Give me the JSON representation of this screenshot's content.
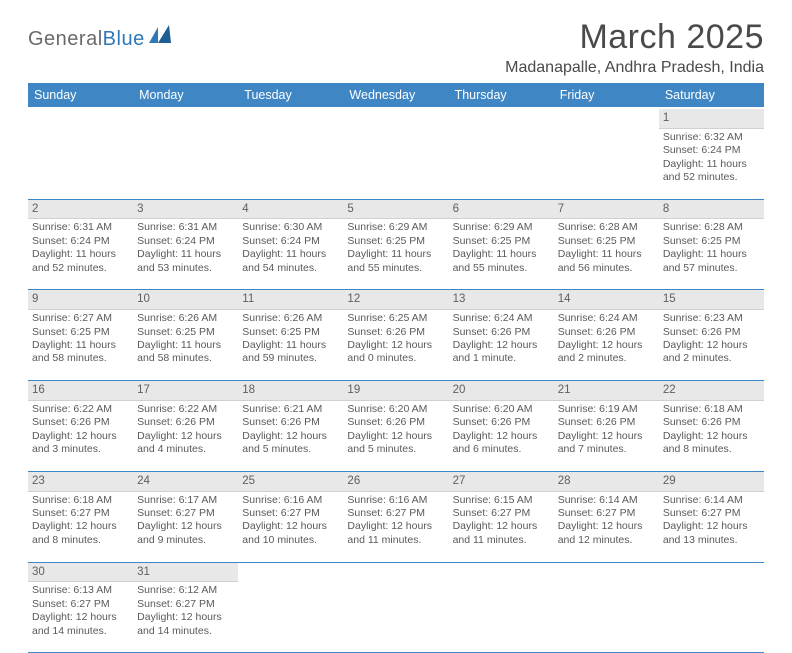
{
  "brand": {
    "name_part1": "General",
    "name_part2": "Blue",
    "mark_color": "#2f78b7"
  },
  "title": "March 2025",
  "subtitle": "Madanapalle, Andhra Pradesh, India",
  "colors": {
    "header_bg": "#3f86c5",
    "header_fg": "#ffffff",
    "row_border": "#3f86c5",
    "daynum_bg": "#e8e8e8",
    "text": "#5a5a5a"
  },
  "weekdays": [
    "Sunday",
    "Monday",
    "Tuesday",
    "Wednesday",
    "Thursday",
    "Friday",
    "Saturday"
  ],
  "leading_blanks": 6,
  "days": [
    {
      "n": 1,
      "sunrise": "6:32 AM",
      "sunset": "6:24 PM",
      "daylight": "11 hours and 52 minutes."
    },
    {
      "n": 2,
      "sunrise": "6:31 AM",
      "sunset": "6:24 PM",
      "daylight": "11 hours and 52 minutes."
    },
    {
      "n": 3,
      "sunrise": "6:31 AM",
      "sunset": "6:24 PM",
      "daylight": "11 hours and 53 minutes."
    },
    {
      "n": 4,
      "sunrise": "6:30 AM",
      "sunset": "6:24 PM",
      "daylight": "11 hours and 54 minutes."
    },
    {
      "n": 5,
      "sunrise": "6:29 AM",
      "sunset": "6:25 PM",
      "daylight": "11 hours and 55 minutes."
    },
    {
      "n": 6,
      "sunrise": "6:29 AM",
      "sunset": "6:25 PM",
      "daylight": "11 hours and 55 minutes."
    },
    {
      "n": 7,
      "sunrise": "6:28 AM",
      "sunset": "6:25 PM",
      "daylight": "11 hours and 56 minutes."
    },
    {
      "n": 8,
      "sunrise": "6:28 AM",
      "sunset": "6:25 PM",
      "daylight": "11 hours and 57 minutes."
    },
    {
      "n": 9,
      "sunrise": "6:27 AM",
      "sunset": "6:25 PM",
      "daylight": "11 hours and 58 minutes."
    },
    {
      "n": 10,
      "sunrise": "6:26 AM",
      "sunset": "6:25 PM",
      "daylight": "11 hours and 58 minutes."
    },
    {
      "n": 11,
      "sunrise": "6:26 AM",
      "sunset": "6:25 PM",
      "daylight": "11 hours and 59 minutes."
    },
    {
      "n": 12,
      "sunrise": "6:25 AM",
      "sunset": "6:26 PM",
      "daylight": "12 hours and 0 minutes."
    },
    {
      "n": 13,
      "sunrise": "6:24 AM",
      "sunset": "6:26 PM",
      "daylight": "12 hours and 1 minute."
    },
    {
      "n": 14,
      "sunrise": "6:24 AM",
      "sunset": "6:26 PM",
      "daylight": "12 hours and 2 minutes."
    },
    {
      "n": 15,
      "sunrise": "6:23 AM",
      "sunset": "6:26 PM",
      "daylight": "12 hours and 2 minutes."
    },
    {
      "n": 16,
      "sunrise": "6:22 AM",
      "sunset": "6:26 PM",
      "daylight": "12 hours and 3 minutes."
    },
    {
      "n": 17,
      "sunrise": "6:22 AM",
      "sunset": "6:26 PM",
      "daylight": "12 hours and 4 minutes."
    },
    {
      "n": 18,
      "sunrise": "6:21 AM",
      "sunset": "6:26 PM",
      "daylight": "12 hours and 5 minutes."
    },
    {
      "n": 19,
      "sunrise": "6:20 AM",
      "sunset": "6:26 PM",
      "daylight": "12 hours and 5 minutes."
    },
    {
      "n": 20,
      "sunrise": "6:20 AM",
      "sunset": "6:26 PM",
      "daylight": "12 hours and 6 minutes."
    },
    {
      "n": 21,
      "sunrise": "6:19 AM",
      "sunset": "6:26 PM",
      "daylight": "12 hours and 7 minutes."
    },
    {
      "n": 22,
      "sunrise": "6:18 AM",
      "sunset": "6:26 PM",
      "daylight": "12 hours and 8 minutes."
    },
    {
      "n": 23,
      "sunrise": "6:18 AM",
      "sunset": "6:27 PM",
      "daylight": "12 hours and 8 minutes."
    },
    {
      "n": 24,
      "sunrise": "6:17 AM",
      "sunset": "6:27 PM",
      "daylight": "12 hours and 9 minutes."
    },
    {
      "n": 25,
      "sunrise": "6:16 AM",
      "sunset": "6:27 PM",
      "daylight": "12 hours and 10 minutes."
    },
    {
      "n": 26,
      "sunrise": "6:16 AM",
      "sunset": "6:27 PM",
      "daylight": "12 hours and 11 minutes."
    },
    {
      "n": 27,
      "sunrise": "6:15 AM",
      "sunset": "6:27 PM",
      "daylight": "12 hours and 11 minutes."
    },
    {
      "n": 28,
      "sunrise": "6:14 AM",
      "sunset": "6:27 PM",
      "daylight": "12 hours and 12 minutes."
    },
    {
      "n": 29,
      "sunrise": "6:14 AM",
      "sunset": "6:27 PM",
      "daylight": "12 hours and 13 minutes."
    },
    {
      "n": 30,
      "sunrise": "6:13 AM",
      "sunset": "6:27 PM",
      "daylight": "12 hours and 14 minutes."
    },
    {
      "n": 31,
      "sunrise": "6:12 AM",
      "sunset": "6:27 PM",
      "daylight": "12 hours and 14 minutes."
    }
  ],
  "labels": {
    "sunrise_prefix": "Sunrise: ",
    "sunset_prefix": "Sunset: ",
    "daylight_prefix": "Daylight: "
  }
}
